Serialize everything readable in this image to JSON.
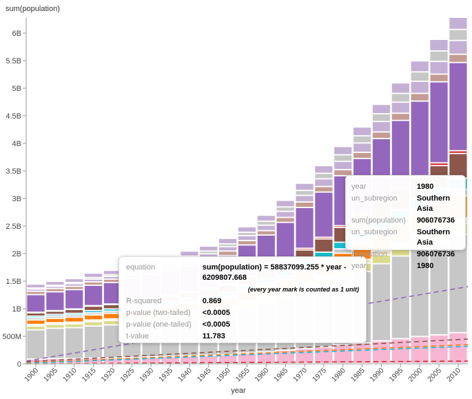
{
  "chart_data": {
    "type": "bar",
    "stacked": true,
    "xlabel": "year",
    "ylabel": "sum(population)",
    "ylim": [
      0,
      6300000000
    ],
    "yticks": [
      {
        "v": 0,
        "label": "0"
      },
      {
        "v": 500000000,
        "label": "500M"
      },
      {
        "v": 1000000000,
        "label": "1B"
      },
      {
        "v": 1500000000,
        "label": "1.5B"
      },
      {
        "v": 2000000000,
        "label": "2B"
      },
      {
        "v": 2500000000,
        "label": "2.5B"
      },
      {
        "v": 3000000000,
        "label": "3B"
      },
      {
        "v": 3500000000,
        "label": "3.5B"
      },
      {
        "v": 4000000000,
        "label": "4B"
      },
      {
        "v": 4500000000,
        "label": "4.5B"
      },
      {
        "v": 5000000000,
        "label": "5B"
      },
      {
        "v": 5500000000,
        "label": "5.5B"
      },
      {
        "v": 6000000000,
        "label": "6B"
      }
    ],
    "categories": [
      "1900",
      "1905",
      "1910",
      "1915",
      "1920",
      "1925",
      "1930",
      "1935",
      "1940",
      "1945",
      "1950",
      "1955",
      "1960",
      "1965",
      "1970",
      "1975",
      "1980",
      "1985",
      "1990",
      "1995",
      "2000",
      "2005",
      "2010"
    ],
    "value_unit": "billions",
    "series": [
      {
        "color": "#f7b6d2",
        "values": [
          0.08,
          0.09,
          0.09,
          0.1,
          0.1,
          0.11,
          0.12,
          0.13,
          0.14,
          0.15,
          0.16,
          0.19,
          0.21,
          0.24,
          0.27,
          0.3,
          0.34,
          0.37,
          0.41,
          0.45,
          0.49,
          0.52,
          0.56
        ]
      },
      {
        "color": "#c7c7c7",
        "values": [
          0.53,
          0.55,
          0.56,
          0.58,
          0.6,
          0.62,
          0.64,
          0.66,
          0.69,
          0.71,
          0.75,
          0.8,
          0.87,
          0.94,
          1.02,
          1.11,
          1.2,
          1.3,
          1.4,
          1.5,
          1.59,
          1.69,
          1.78
        ]
      },
      {
        "color": "#dbdb8d",
        "values": [
          0.07,
          0.07,
          0.07,
          0.08,
          0.08,
          0.08,
          0.08,
          0.08,
          0.09,
          0.09,
          0.09,
          0.1,
          0.1,
          0.11,
          0.12,
          0.13,
          0.14,
          0.15,
          0.16,
          0.17,
          0.18,
          0.19,
          0.2
        ]
      },
      {
        "color": "#f5e6c0",
        "values": [
          0.03,
          0.03,
          0.03,
          0.03,
          0.03,
          0.03,
          0.04,
          0.04,
          0.04,
          0.04,
          0.04,
          0.05,
          0.05,
          0.05,
          0.06,
          0.06,
          0.07,
          0.07,
          0.08,
          0.08,
          0.09,
          0.09,
          0.1
        ]
      },
      {
        "color": "#ff7f0e",
        "values": [
          0.08,
          0.08,
          0.09,
          0.09,
          0.1,
          0.1,
          0.11,
          0.11,
          0.12,
          0.13,
          0.14,
          0.15,
          0.17,
          0.18,
          0.21,
          0.23,
          0.25,
          0.28,
          0.3,
          0.33,
          0.35,
          0.38,
          0.4
        ]
      },
      {
        "color": "#c7c7c7",
        "values": [
          0.04,
          0.04,
          0.04,
          0.04,
          0.04,
          0.05,
          0.05,
          0.05,
          0.05,
          0.05,
          0.05,
          0.06,
          0.06,
          0.07,
          0.07,
          0.08,
          0.08,
          0.09,
          0.1,
          0.1,
          0.11,
          0.11,
          0.12
        ]
      },
      {
        "color": "#17becf",
        "values": [
          0.03,
          0.03,
          0.03,
          0.04,
          0.04,
          0.04,
          0.05,
          0.05,
          0.05,
          0.05,
          0.06,
          0.07,
          0.08,
          0.09,
          0.1,
          0.11,
          0.12,
          0.13,
          0.15,
          0.16,
          0.17,
          0.19,
          0.2
        ]
      },
      {
        "color": "#8c564b",
        "values": [
          0.06,
          0.06,
          0.07,
          0.08,
          0.08,
          0.09,
          0.09,
          0.1,
          0.11,
          0.12,
          0.13,
          0.15,
          0.16,
          0.19,
          0.21,
          0.24,
          0.27,
          0.3,
          0.33,
          0.36,
          0.39,
          0.42,
          0.45
        ]
      },
      {
        "color": "#d62728",
        "values": [
          0.01,
          0.01,
          0.01,
          0.01,
          0.01,
          0.01,
          0.01,
          0.01,
          0.01,
          0.02,
          0.02,
          0.02,
          0.02,
          0.02,
          0.03,
          0.03,
          0.03,
          0.03,
          0.04,
          0.04,
          0.04,
          0.05,
          0.05
        ]
      },
      {
        "color": "#9467bd",
        "values": [
          0.32,
          0.34,
          0.35,
          0.37,
          0.39,
          0.41,
          0.43,
          0.45,
          0.47,
          0.49,
          0.52,
          0.56,
          0.61,
          0.67,
          0.74,
          0.82,
          0.906,
          1.0,
          1.11,
          1.22,
          1.35,
          1.47,
          1.6
        ]
      },
      {
        "color": "#c49c94",
        "values": [
          0.06,
          0.06,
          0.06,
          0.06,
          0.06,
          0.07,
          0.07,
          0.07,
          0.07,
          0.07,
          0.08,
          0.08,
          0.08,
          0.09,
          0.1,
          0.1,
          0.11,
          0.11,
          0.12,
          0.13,
          0.14,
          0.14,
          0.15
        ]
      },
      {
        "color": "#c5b0d5",
        "values": [
          0.04,
          0.04,
          0.05,
          0.05,
          0.05,
          0.05,
          0.06,
          0.06,
          0.07,
          0.07,
          0.08,
          0.09,
          0.1,
          0.11,
          0.12,
          0.14,
          0.15,
          0.17,
          0.19,
          0.2,
          0.22,
          0.23,
          0.25
        ]
      },
      {
        "color": "#c7c7c7",
        "values": [
          0.02,
          0.02,
          0.02,
          0.03,
          0.03,
          0.03,
          0.04,
          0.04,
          0.04,
          0.05,
          0.05,
          0.06,
          0.07,
          0.08,
          0.09,
          0.1,
          0.12,
          0.13,
          0.14,
          0.16,
          0.17,
          0.19,
          0.2
        ]
      },
      {
        "color": "#c5b0d5",
        "values": [
          0.07,
          0.07,
          0.07,
          0.08,
          0.08,
          0.08,
          0.08,
          0.09,
          0.09,
          0.09,
          0.1,
          0.1,
          0.11,
          0.12,
          0.13,
          0.14,
          0.15,
          0.16,
          0.17,
          0.19,
          0.2,
          0.21,
          0.22
        ]
      }
    ],
    "trendlines": [
      {
        "color": "#9467bd",
        "start": 0.05,
        "end": 1.4
      },
      {
        "color": "#8c564b",
        "start": 0.04,
        "end": 0.45
      },
      {
        "color": "#ff7f0e",
        "start": 0.02,
        "end": 0.35
      },
      {
        "color": "#17becf",
        "start": 0.01,
        "end": 0.32
      },
      {
        "color": "#d62728",
        "start": 0.0,
        "end": 0.05
      }
    ],
    "grid": false,
    "legend": "none"
  },
  "regression_tooltip": {
    "rows": [
      {
        "k": "equation",
        "v": "sum(population) = 58837099.255 * year - 6209807.668"
      },
      {
        "k": "R-squared",
        "v": "0.869"
      },
      {
        "k": "p-value (two-tailed)",
        "v": "<0.0005"
      },
      {
        "k": "p-value (one-tailed)",
        "v": "<0.0005"
      },
      {
        "k": "t-value",
        "v": "11.783"
      }
    ],
    "note": "(every year mark is counted as 1 unit)"
  },
  "hover_tooltip": {
    "rows": [
      {
        "k": "year",
        "v": "1980"
      },
      {
        "k": "un_subregion",
        "v": "Southern Asia"
      },
      {
        "k": "sum(population)",
        "v": "906076736"
      },
      {
        "k": "un_subregion",
        "v": "Southern Asia"
      },
      {
        "k": "Population",
        "v": "906076736"
      },
      {
        "k": "year",
        "v": "1980"
      }
    ]
  }
}
